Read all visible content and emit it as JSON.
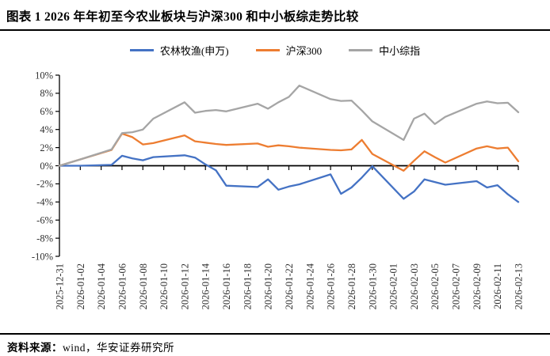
{
  "header": {
    "title": "图表 1 2026 年年初至今农业板块与沪深300 和中小板综走势比较"
  },
  "source": {
    "label": "资料来源：",
    "text": "wind，华安证券研究所"
  },
  "chart_data": {
    "type": "line",
    "title": "2026 年年初至今农业板块与沪深300 和中小板综走势比较",
    "legend_position": "top",
    "grid": false,
    "ylim": [
      -10,
      10
    ],
    "y_tick_labels": [
      "10%",
      "8%",
      "6%",
      "4%",
      "2%",
      "0%",
      "-2%",
      "-4%",
      "-6%",
      "-8%",
      "-10%"
    ],
    "x_tick_labels": [
      "2025-12-31",
      "2026-01-02",
      "2026-01-04",
      "2026-01-06",
      "2026-01-08",
      "2026-01-10",
      "2026-01-12",
      "2026-01-14",
      "2026-01-16",
      "2026-01-18",
      "2026-01-20",
      "2026-01-22",
      "2026-01-24",
      "2026-01-26",
      "2026-01-28",
      "2026-01-30",
      "2026-02-01",
      "2026-02-03",
      "2026-02-05",
      "2026-02-07",
      "2026-02-09",
      "2026-02-11",
      "2026-02-13"
    ],
    "x_dates": [
      "2025-12-31",
      "2026-01-02",
      "2026-01-05",
      "2026-01-06",
      "2026-01-07",
      "2026-01-08",
      "2026-01-09",
      "2026-01-12",
      "2026-01-13",
      "2026-01-14",
      "2026-01-15",
      "2026-01-16",
      "2026-01-19",
      "2026-01-20",
      "2026-01-21",
      "2026-01-22",
      "2026-01-23",
      "2026-01-26",
      "2026-01-27",
      "2026-01-28",
      "2026-01-29",
      "2026-01-30",
      "2026-02-02",
      "2026-02-03",
      "2026-02-04",
      "2026-02-05",
      "2026-02-06",
      "2026-02-09",
      "2026-02-10",
      "2026-02-11",
      "2026-02-12",
      "2026-02-13"
    ],
    "unit": "%",
    "series": [
      {
        "name": "农林牧渔(申万)",
        "color": "#4472C4",
        "values": [
          0.0,
          0.0,
          0.1,
          1.1,
          0.8,
          0.6,
          0.95,
          1.15,
          0.9,
          0.15,
          -0.5,
          -2.2,
          -2.35,
          -1.5,
          -2.65,
          -2.3,
          -2.05,
          -0.95,
          -3.1,
          -2.4,
          -1.3,
          -0.05,
          -3.65,
          -2.85,
          -1.5,
          -1.8,
          -2.1,
          -1.7,
          -2.4,
          -2.15,
          -3.15,
          -4.0
        ]
      },
      {
        "name": "沪深300",
        "color": "#ED7D31",
        "values": [
          0.0,
          0.7,
          1.75,
          3.55,
          3.15,
          2.35,
          2.5,
          3.35,
          2.7,
          2.55,
          2.4,
          2.3,
          2.45,
          2.1,
          2.25,
          2.15,
          2.0,
          1.75,
          1.7,
          1.8,
          2.85,
          1.3,
          -0.55,
          0.55,
          1.6,
          0.95,
          0.35,
          1.9,
          2.15,
          1.9,
          2.0,
          0.5
        ]
      },
      {
        "name": "中小综指",
        "color": "#A5A5A5",
        "values": [
          0.0,
          0.7,
          1.8,
          3.6,
          3.7,
          4.0,
          5.2,
          7.0,
          5.85,
          6.05,
          6.15,
          6.0,
          6.85,
          6.3,
          7.0,
          7.6,
          8.85,
          7.35,
          7.15,
          7.2,
          6.1,
          4.9,
          2.85,
          5.2,
          5.75,
          4.6,
          5.4,
          6.85,
          7.1,
          6.9,
          6.95,
          5.9
        ]
      }
    ]
  }
}
